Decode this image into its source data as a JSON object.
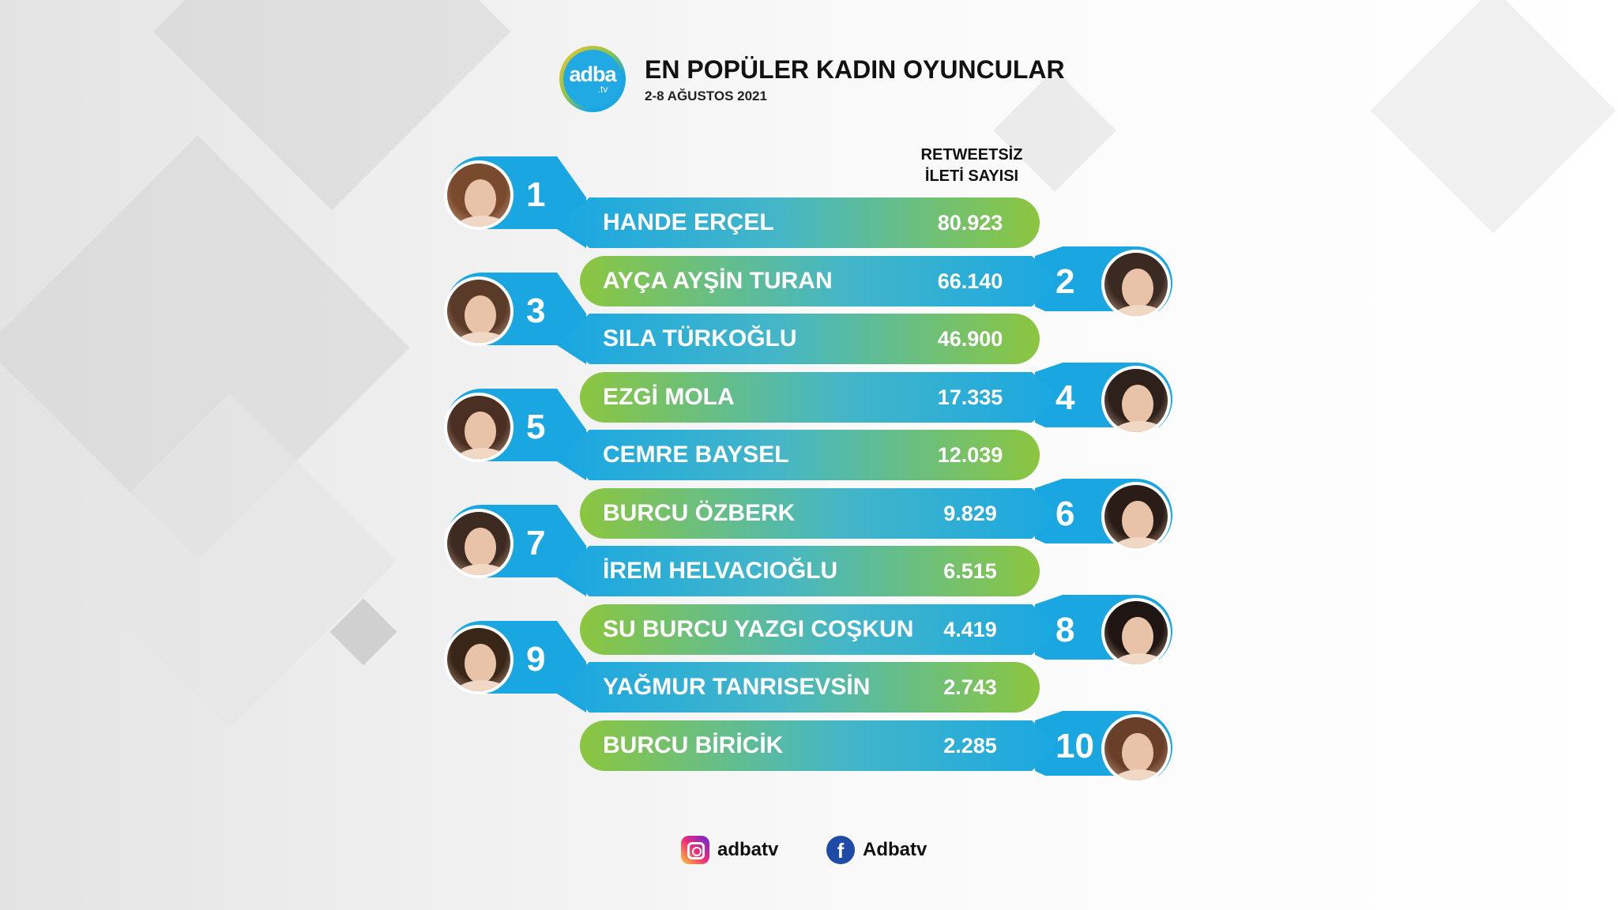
{
  "header": {
    "logo_word": "adba",
    "logo_tv": ".tv",
    "title": "EN POPÜLER KADIN OYUNCULAR",
    "subtitle": "2-8 AĞUSTOS 2021"
  },
  "column_header": {
    "line1": "RETWEETSİZ",
    "line2": "İLETİ SAYISI"
  },
  "chart_data": {
    "type": "table",
    "title": "EN POPÜLER KADIN OYUNCULAR",
    "subtitle": "2-8 AĞUSTOS 2021",
    "value_label": "RETWEETSİZ İLETİ SAYISI",
    "rows": [
      {
        "rank": "1",
        "name": "HANDE ERÇEL",
        "value_text": "80.923",
        "value": 80923
      },
      {
        "rank": "2",
        "name": "AYÇA AYŞİN TURAN",
        "value_text": "66.140",
        "value": 66140
      },
      {
        "rank": "3",
        "name": "SILA TÜRKOĞLU",
        "value_text": "46.900",
        "value": 46900
      },
      {
        "rank": "4",
        "name": "EZGİ MOLA",
        "value_text": "17.335",
        "value": 17335
      },
      {
        "rank": "5",
        "name": "CEMRE BAYSEL",
        "value_text": "12.039",
        "value": 12039
      },
      {
        "rank": "6",
        "name": "BURCU ÖZBERK",
        "value_text": "9.829",
        "value": 9829
      },
      {
        "rank": "7",
        "name": "İREM HELVACIOĞLU",
        "value_text": "6.515",
        "value": 6515
      },
      {
        "rank": "8",
        "name": "SU BURCU YAZGI COŞKUN",
        "value_text": "4.419",
        "value": 4419
      },
      {
        "rank": "9",
        "name": "YAĞMUR TANRISEVSİN",
        "value_text": "2.743",
        "value": 2743
      },
      {
        "rank": "10",
        "name": "BURCU BİRİCİK",
        "value_text": "2.285",
        "value": 2285
      }
    ]
  },
  "footer": {
    "instagram": "adbatv",
    "facebook": "Adbatv",
    "facebook_glyph": "f"
  },
  "colors": {
    "blue": "#1aa7e1",
    "green": "#8cc63f",
    "fb": "#1e4aa8"
  }
}
